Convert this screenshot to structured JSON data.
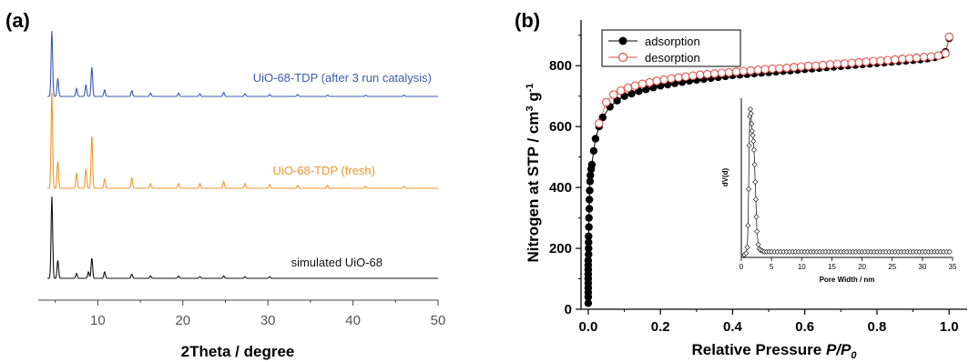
{
  "panels": {
    "a_label": "(a)",
    "b_label": "(b)"
  },
  "chart_data": [
    {
      "type": "line",
      "xlabel": "2Theta / degree",
      "ylabel": "",
      "xlim": [
        3,
        50
      ],
      "x_ticks": [
        10,
        20,
        30,
        40,
        50
      ],
      "y_ticks_visible": false,
      "series": [
        {
          "name": "UiO-68-TDP (after 3 run catalysis)",
          "color": "#3a5bb0",
          "peaks": [
            {
              "x": 4.6,
              "h": 1.0
            },
            {
              "x": 5.3,
              "h": 0.28
            },
            {
              "x": 7.5,
              "h": 0.12
            },
            {
              "x": 8.6,
              "h": 0.18
            },
            {
              "x": 9.3,
              "h": 0.45
            },
            {
              "x": 10.8,
              "h": 0.1
            },
            {
              "x": 14.0,
              "h": 0.09
            },
            {
              "x": 16.2,
              "h": 0.05
            },
            {
              "x": 19.5,
              "h": 0.05
            },
            {
              "x": 22.0,
              "h": 0.04
            },
            {
              "x": 24.8,
              "h": 0.06
            },
            {
              "x": 27.3,
              "h": 0.04
            },
            {
              "x": 30.2,
              "h": 0.03
            },
            {
              "x": 33.5,
              "h": 0.03
            },
            {
              "x": 37.0,
              "h": 0.02
            },
            {
              "x": 41.5,
              "h": 0.02
            },
            {
              "x": 46.0,
              "h": 0.02
            }
          ]
        },
        {
          "name": "UiO-68-TDP (fresh)",
          "color": "#f0962e",
          "peaks": [
            {
              "x": 4.6,
              "h": 1.0
            },
            {
              "x": 5.3,
              "h": 0.28
            },
            {
              "x": 7.5,
              "h": 0.16
            },
            {
              "x": 8.6,
              "h": 0.2
            },
            {
              "x": 9.3,
              "h": 0.55
            },
            {
              "x": 10.8,
              "h": 0.1
            },
            {
              "x": 14.0,
              "h": 0.11
            },
            {
              "x": 16.2,
              "h": 0.05
            },
            {
              "x": 19.5,
              "h": 0.05
            },
            {
              "x": 22.0,
              "h": 0.05
            },
            {
              "x": 24.8,
              "h": 0.07
            },
            {
              "x": 27.3,
              "h": 0.05
            },
            {
              "x": 30.2,
              "h": 0.04
            },
            {
              "x": 33.5,
              "h": 0.03
            },
            {
              "x": 37.0,
              "h": 0.03
            },
            {
              "x": 41.5,
              "h": 0.02
            },
            {
              "x": 46.0,
              "h": 0.02
            }
          ]
        },
        {
          "name": "simulated UiO-68",
          "color": "#111111",
          "peaks": [
            {
              "x": 4.6,
              "h": 1.0
            },
            {
              "x": 5.3,
              "h": 0.22
            },
            {
              "x": 7.5,
              "h": 0.06
            },
            {
              "x": 8.9,
              "h": 0.08
            },
            {
              "x": 9.3,
              "h": 0.25
            },
            {
              "x": 10.8,
              "h": 0.08
            },
            {
              "x": 14.0,
              "h": 0.05
            },
            {
              "x": 16.2,
              "h": 0.03
            },
            {
              "x": 19.5,
              "h": 0.03
            },
            {
              "x": 22.0,
              "h": 0.02
            },
            {
              "x": 24.8,
              "h": 0.03
            },
            {
              "x": 27.3,
              "h": 0.02
            },
            {
              "x": 30.2,
              "h": 0.02
            }
          ]
        }
      ]
    },
    {
      "type": "scatter",
      "xlabel_main": "Relative Pressure ",
      "xlabel_italic": "P/P",
      "xlabel_sub": "0",
      "ylabel_main": "Nitrogen at STP / cm",
      "ylabel_sup1": "3",
      "ylabel_mid": " g",
      "ylabel_sup2": "-1",
      "xlim": [
        -0.02,
        1.05
      ],
      "ylim": [
        0,
        950
      ],
      "x_ticks": [
        "0.0",
        "0.2",
        "0.4",
        "0.6",
        "0.8",
        "1.0"
      ],
      "y_ticks": [
        "0",
        "200",
        "400",
        "600",
        "800"
      ],
      "legend_position": "top-left",
      "series": [
        {
          "name": "adsorption",
          "marker": "filled-circle",
          "color": "#000000",
          "x": [
            0.0,
            0.0,
            0.0,
            0.0,
            0.0,
            0.0,
            0.0,
            0.0,
            0.0,
            0.0,
            0.001,
            0.001,
            0.001,
            0.001,
            0.002,
            0.002,
            0.003,
            0.003,
            0.004,
            0.005,
            0.006,
            0.008,
            0.01,
            0.015,
            0.02,
            0.03,
            0.04,
            0.06,
            0.08,
            0.1,
            0.12,
            0.14,
            0.16,
            0.18,
            0.2,
            0.22,
            0.24,
            0.26,
            0.28,
            0.3,
            0.32,
            0.34,
            0.36,
            0.38,
            0.4,
            0.42,
            0.44,
            0.46,
            0.48,
            0.5,
            0.52,
            0.54,
            0.56,
            0.58,
            0.6,
            0.62,
            0.64,
            0.66,
            0.68,
            0.7,
            0.72,
            0.74,
            0.76,
            0.78,
            0.8,
            0.82,
            0.84,
            0.86,
            0.88,
            0.9,
            0.92,
            0.94,
            0.96,
            0.98,
            0.99,
            1.0
          ],
          "y": [
            20,
            40,
            55,
            70,
            85,
            100,
            115,
            130,
            145,
            160,
            180,
            200,
            220,
            240,
            270,
            300,
            330,
            360,
            390,
            420,
            440,
            460,
            475,
            520,
            560,
            600,
            630,
            665,
            685,
            700,
            708,
            716,
            722,
            728,
            734,
            738,
            742,
            746,
            750,
            753,
            756,
            759,
            762,
            765,
            768,
            770,
            772,
            774,
            776,
            778,
            780,
            782,
            784,
            786,
            788,
            790,
            792,
            794,
            796,
            798,
            800,
            802,
            804,
            806,
            808,
            810,
            812,
            814,
            816,
            818,
            820,
            823,
            827,
            835,
            845,
            890
          ]
        },
        {
          "name": "desorption",
          "marker": "open-circle",
          "color": "#e0504a",
          "x": [
            0.03,
            0.05,
            0.07,
            0.09,
            0.11,
            0.13,
            0.15,
            0.17,
            0.19,
            0.21,
            0.23,
            0.25,
            0.27,
            0.29,
            0.31,
            0.33,
            0.35,
            0.37,
            0.39,
            0.41,
            0.43,
            0.45,
            0.47,
            0.49,
            0.51,
            0.53,
            0.55,
            0.57,
            0.59,
            0.61,
            0.63,
            0.65,
            0.67,
            0.69,
            0.71,
            0.73,
            0.75,
            0.77,
            0.79,
            0.81,
            0.83,
            0.85,
            0.87,
            0.89,
            0.91,
            0.93,
            0.95,
            0.97,
            0.99,
            1.0
          ],
          "y": [
            610,
            680,
            705,
            718,
            727,
            734,
            740,
            745,
            750,
            754,
            758,
            761,
            764,
            767,
            770,
            772,
            774,
            776,
            778,
            780,
            782,
            784,
            786,
            788,
            790,
            791,
            793,
            795,
            797,
            799,
            800,
            802,
            804,
            806,
            807,
            809,
            811,
            813,
            815,
            816,
            818,
            820,
            822,
            824,
            826,
            828,
            830,
            833,
            840,
            895
          ]
        }
      ],
      "inset": {
        "type": "scatter",
        "xlabel": "Pore Width / nm",
        "ylabel": "dV(d)",
        "xlim": [
          0,
          35
        ],
        "x_ticks": [
          "0",
          "5",
          "10",
          "15",
          "20",
          "25",
          "30",
          "35"
        ],
        "marker": "open-diamond",
        "x": [
          0.5,
          0.8,
          1.0,
          1.1,
          1.2,
          1.3,
          1.4,
          1.5,
          1.6,
          1.7,
          1.8,
          1.9,
          2.0,
          2.1,
          2.2,
          2.3,
          2.4,
          2.5,
          2.6,
          2.8,
          3.0,
          3.2,
          3.5,
          3.8,
          4.2,
          4.6,
          5.0,
          5.5,
          6.0,
          6.5,
          7.0,
          7.5,
          8.0,
          8.5,
          9.0,
          9.5,
          10.0,
          10.5,
          11.0,
          11.5,
          12.0,
          12.5,
          13.0,
          13.5,
          14.0,
          14.5,
          15.0,
          15.5,
          16.0,
          16.5,
          17.0,
          17.5,
          18.0,
          18.5,
          19.0,
          19.5,
          20.0,
          20.5,
          21.0,
          21.5,
          22.0,
          22.5,
          23.0,
          23.5,
          24.0,
          24.5,
          25.0,
          25.5,
          26.0,
          26.5,
          27.0,
          27.5,
          28.0,
          28.5,
          29.0,
          29.5,
          30.0,
          30.5,
          31.0,
          31.5,
          32.0,
          32.5,
          33.0,
          33.5,
          34.0,
          34.5
        ],
        "y": [
          0.0,
          0.01,
          0.05,
          0.2,
          0.45,
          0.75,
          0.95,
          1.0,
          0.97,
          0.9,
          0.85,
          0.82,
          0.78,
          0.72,
          0.62,
          0.5,
          0.38,
          0.26,
          0.16,
          0.07,
          0.04,
          0.03,
          0.025,
          0.02,
          0.02,
          0.02,
          0.02,
          0.02,
          0.02,
          0.02,
          0.02,
          0.02,
          0.02,
          0.02,
          0.02,
          0.02,
          0.02,
          0.02,
          0.02,
          0.02,
          0.02,
          0.02,
          0.02,
          0.02,
          0.02,
          0.02,
          0.02,
          0.02,
          0.02,
          0.02,
          0.02,
          0.02,
          0.02,
          0.02,
          0.02,
          0.02,
          0.02,
          0.02,
          0.02,
          0.02,
          0.02,
          0.02,
          0.02,
          0.02,
          0.02,
          0.02,
          0.02,
          0.02,
          0.02,
          0.02,
          0.02,
          0.02,
          0.02,
          0.02,
          0.02,
          0.02,
          0.02,
          0.02,
          0.02,
          0.02,
          0.02,
          0.02,
          0.02,
          0.02,
          0.02,
          0.02
        ]
      }
    }
  ]
}
